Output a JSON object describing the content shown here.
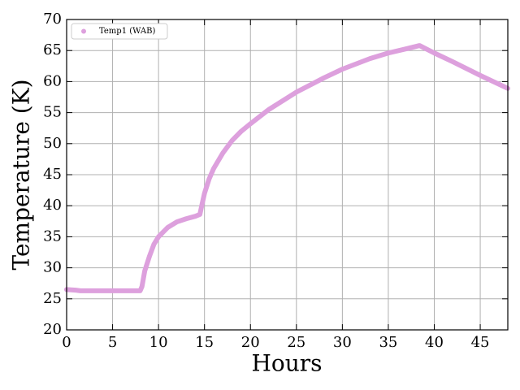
{
  "chart_data": {
    "type": "line",
    "xlabel": "Hours",
    "ylabel": "Temperature (K)",
    "x": [
      0,
      1,
      1.5,
      4,
      8,
      8.2,
      8.5,
      9,
      9.5,
      10,
      11,
      12,
      13,
      14,
      14.5,
      14.7,
      15,
      15.5,
      16,
      17,
      18,
      19,
      20,
      22,
      25,
      28,
      30,
      33,
      35,
      37,
      38.4,
      40,
      42,
      45,
      48
    ],
    "series": [
      {
        "name": "Temp1 (WAB)",
        "color": "#dda0dd",
        "values": [
          26.5,
          26.4,
          26.3,
          26.3,
          26.3,
          27,
          29.5,
          31.8,
          33.8,
          35,
          36.5,
          37.4,
          37.9,
          38.3,
          38.6,
          40,
          42,
          44.3,
          46,
          48.5,
          50.5,
          52,
          53.2,
          55.5,
          58.3,
          60.6,
          62,
          63.7,
          64.6,
          65.3,
          65.8,
          64.6,
          63.2,
          61,
          58.9
        ]
      }
    ],
    "xlim": [
      0,
      48
    ],
    "xticks": [
      0,
      5,
      10,
      15,
      20,
      25,
      30,
      35,
      40,
      45
    ],
    "ylim": [
      20,
      70
    ],
    "yticks": [
      20,
      25,
      30,
      35,
      40,
      45,
      50,
      55,
      60,
      65,
      70
    ],
    "grid": true,
    "legend": "upper left"
  }
}
